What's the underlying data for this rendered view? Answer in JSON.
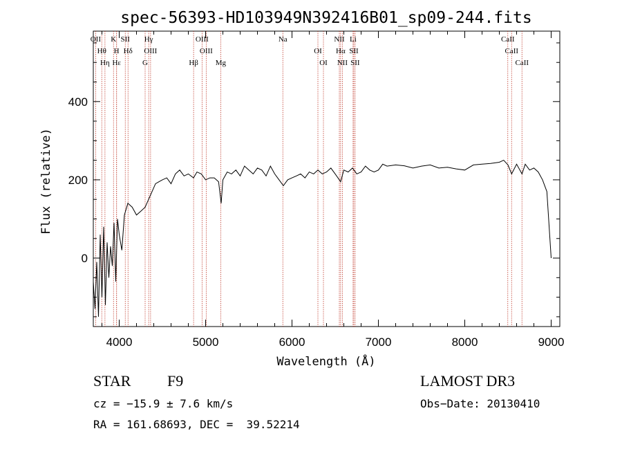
{
  "chart_data": {
    "type": "line",
    "title": "spec-56393-HD103949N392416B01_sp09-244.fits",
    "xlabel": "Wavelength (Å)",
    "ylabel": "Flux (relative)",
    "xlim": [
      3700,
      9100
    ],
    "ylim": [
      -175,
      580
    ],
    "xticks": [
      4000,
      5000,
      6000,
      7000,
      8000,
      9000
    ],
    "yticks": [
      0,
      200,
      400
    ],
    "series": [
      {
        "name": "flux",
        "x": [
          3700,
          3720,
          3740,
          3760,
          3780,
          3800,
          3820,
          3840,
          3860,
          3880,
          3900,
          3920,
          3940,
          3960,
          3980,
          4000,
          4030,
          4060,
          4100,
          4150,
          4200,
          4250,
          4300,
          4340,
          4380,
          4420,
          4460,
          4500,
          4550,
          4600,
          4650,
          4700,
          4750,
          4800,
          4860,
          4900,
          4950,
          5000,
          5050,
          5100,
          5150,
          5180,
          5200,
          5250,
          5300,
          5350,
          5400,
          5450,
          5500,
          5550,
          5600,
          5650,
          5700,
          5750,
          5800,
          5850,
          5900,
          5950,
          6000,
          6050,
          6100,
          6150,
          6200,
          6250,
          6300,
          6350,
          6400,
          6450,
          6500,
          6563,
          6600,
          6650,
          6700,
          6750,
          6800,
          6850,
          6900,
          6950,
          7000,
          7050,
          7100,
          7200,
          7300,
          7400,
          7500,
          7600,
          7700,
          7800,
          7900,
          8000,
          8100,
          8200,
          8300,
          8400,
          8450,
          8500,
          8542,
          8600,
          8662,
          8700,
          8750,
          8800,
          8850,
          8900,
          8950,
          9000
        ],
        "values": [
          -60,
          -130,
          -10,
          -150,
          60,
          -100,
          80,
          -120,
          40,
          -50,
          30,
          -20,
          90,
          -60,
          100,
          60,
          20,
          110,
          140,
          130,
          110,
          120,
          130,
          150,
          170,
          190,
          195,
          200,
          205,
          190,
          215,
          225,
          210,
          215,
          205,
          220,
          215,
          200,
          205,
          205,
          195,
          140,
          200,
          220,
          215,
          225,
          210,
          235,
          225,
          215,
          230,
          225,
          210,
          235,
          215,
          200,
          185,
          200,
          205,
          210,
          215,
          205,
          220,
          215,
          225,
          215,
          220,
          230,
          215,
          195,
          225,
          220,
          230,
          215,
          220,
          235,
          225,
          220,
          225,
          240,
          235,
          238,
          236,
          230,
          235,
          238,
          230,
          232,
          228,
          225,
          238,
          240,
          242,
          245,
          250,
          238,
          215,
          240,
          215,
          240,
          225,
          230,
          220,
          200,
          170,
          0
        ]
      }
    ],
    "lines": [
      {
        "label": "OII",
        "wavelength": 3727
      },
      {
        "label": "Hθ",
        "wavelength": 3798
      },
      {
        "label": "Hη",
        "wavelength": 3835
      },
      {
        "label": "K",
        "wavelength": 3934
      },
      {
        "label": "H",
        "wavelength": 3969
      },
      {
        "label": "Hε",
        "wavelength": 3970
      },
      {
        "label": "SII",
        "wavelength": 4070
      },
      {
        "label": "Hδ",
        "wavelength": 4102
      },
      {
        "label": "G",
        "wavelength": 4300
      },
      {
        "label": "Hγ",
        "wavelength": 4341
      },
      {
        "label": "OIII",
        "wavelength": 4363
      },
      {
        "label": "Hβ",
        "wavelength": 4861
      },
      {
        "label": "OIII",
        "wavelength": 4959
      },
      {
        "label": "OIII",
        "wavelength": 5007
      },
      {
        "label": "Mg",
        "wavelength": 5175
      },
      {
        "label": "Na",
        "wavelength": 5894
      },
      {
        "label": "OI",
        "wavelength": 6300
      },
      {
        "label": "OI",
        "wavelength": 6364
      },
      {
        "label": "NII",
        "wavelength": 6548
      },
      {
        "label": "Hα",
        "wavelength": 6563
      },
      {
        "label": "NII",
        "wavelength": 6583
      },
      {
        "label": "Li",
        "wavelength": 6707
      },
      {
        "label": "SII",
        "wavelength": 6716
      },
      {
        "label": "SII",
        "wavelength": 6731
      },
      {
        "label": "CaII",
        "wavelength": 8498
      },
      {
        "label": "CaII",
        "wavelength": 8542
      },
      {
        "label": "CaII",
        "wavelength": 8662
      }
    ],
    "colors": {
      "spectrum": "#000000",
      "lines": "#c0392b",
      "axes": "#000000"
    }
  },
  "info": {
    "class_label": "STAR",
    "subclass": "F9",
    "survey": "LAMOST DR3",
    "cz": "cz = −15.9 ± 7.6 km/s",
    "obs_date": "Obs−Date: 20130410",
    "coords": "RA = 161.68693, DEC =  39.52214"
  }
}
